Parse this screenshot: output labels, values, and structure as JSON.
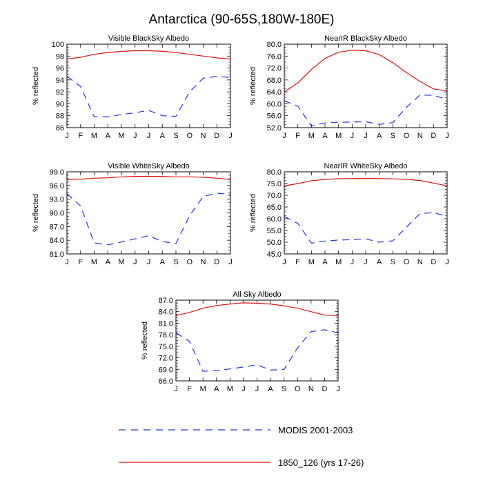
{
  "figure": {
    "title": "Antarctica (90-65S,180W-180E)"
  },
  "legend": {
    "entries": [
      {
        "label": "MODIS 2001-2003",
        "color": "#2233dd",
        "style": "dashed"
      },
      {
        "label": "1850_126 (yrs 17-26)",
        "color": "#dd1111",
        "style": "solid"
      }
    ]
  },
  "chart_data": [
    {
      "type": "line",
      "title": "Visible BlackSky Albedo",
      "ylabel": "% reflected",
      "categories": [
        "J",
        "F",
        "M",
        "A",
        "M",
        "J",
        "J",
        "A",
        "S",
        "O",
        "N",
        "D",
        "J"
      ],
      "ylim": [
        86,
        100
      ],
      "yticks": [
        "86",
        "88",
        "90",
        "92",
        "94",
        "96",
        "98",
        "100"
      ],
      "series": [
        {
          "name": "MODIS 2001-2003",
          "values": [
            94.6,
            92.9,
            87.8,
            87.8,
            88.2,
            88.5,
            88.9,
            88.0,
            87.9,
            92.0,
            94.3,
            94.6,
            94.4
          ]
        },
        {
          "name": "1850_126 (yrs 17-26)",
          "values": [
            97.5,
            97.8,
            98.3,
            98.6,
            98.8,
            98.9,
            98.9,
            98.8,
            98.6,
            98.3,
            98.0,
            97.7,
            97.5
          ]
        }
      ]
    },
    {
      "type": "line",
      "title": "NearIR BlackSky Albedo",
      "ylabel": "% reflected",
      "categories": [
        "J",
        "F",
        "M",
        "A",
        "M",
        "J",
        "J",
        "A",
        "S",
        "O",
        "N",
        "D",
        "J"
      ],
      "ylim": [
        52,
        80
      ],
      "yticks": [
        "52.0",
        "56.0",
        "60.0",
        "64.0",
        "68.0",
        "72.0",
        "76.0",
        "80.0"
      ],
      "series": [
        {
          "name": "MODIS 2001-2003",
          "values": [
            61.0,
            59.2,
            52.5,
            53.6,
            53.8,
            53.9,
            54.0,
            53.1,
            53.7,
            58.8,
            63.0,
            62.8,
            61.5
          ]
        },
        {
          "name": "1850_126 (yrs 17-26)",
          "values": [
            64.0,
            67.0,
            71.5,
            75.2,
            77.3,
            78.0,
            77.8,
            76.5,
            73.8,
            70.5,
            67.5,
            65.0,
            64.3
          ]
        }
      ]
    },
    {
      "type": "line",
      "title": "Visible WhiteSky Albedo",
      "ylabel": "% reflected",
      "categories": [
        "J",
        "F",
        "M",
        "A",
        "M",
        "J",
        "J",
        "A",
        "S",
        "O",
        "N",
        "D",
        "J"
      ],
      "ylim": [
        81,
        99
      ],
      "yticks": [
        "81.0",
        "84.0",
        "87.0",
        "90.0",
        "93.0",
        "96.0",
        "99.0"
      ],
      "series": [
        {
          "name": "MODIS 2001-2003",
          "values": [
            94.2,
            91.5,
            83.4,
            83.0,
            83.6,
            84.3,
            85.0,
            83.7,
            83.3,
            89.4,
            93.6,
            94.3,
            94.1
          ]
        },
        {
          "name": "1850_126 (yrs 17-26)",
          "values": [
            97.3,
            97.4,
            97.6,
            97.7,
            97.9,
            98.0,
            98.0,
            98.0,
            97.9,
            97.9,
            97.8,
            97.6,
            97.3
          ]
        }
      ]
    },
    {
      "type": "line",
      "title": "NearIR WhiteSky Albedo",
      "ylabel": "% reflected",
      "categories": [
        "J",
        "F",
        "M",
        "A",
        "M",
        "J",
        "J",
        "A",
        "S",
        "O",
        "N",
        "D",
        "J"
      ],
      "ylim": [
        45,
        80
      ],
      "yticks": [
        "45.0",
        "50.0",
        "55.0",
        "60.0",
        "65.0",
        "70.0",
        "75.0",
        "80.0"
      ],
      "series": [
        {
          "name": "MODIS 2001-2003",
          "values": [
            61.0,
            58.0,
            49.6,
            50.5,
            50.9,
            51.1,
            51.4,
            50.0,
            50.6,
            56.4,
            62.2,
            62.6,
            61.0
          ]
        },
        {
          "name": "1850_126 (yrs 17-26)",
          "values": [
            74.0,
            75.0,
            76.2,
            76.7,
            77.1,
            77.1,
            77.2,
            77.1,
            77.0,
            76.8,
            76.3,
            75.2,
            74.0
          ]
        }
      ]
    },
    {
      "type": "line",
      "title": "All Sky Albedo",
      "ylabel": "% reflected",
      "categories": [
        "J",
        "F",
        "M",
        "A",
        "M",
        "J",
        "J",
        "A",
        "S",
        "O",
        "N",
        "D",
        "J"
      ],
      "ylim": [
        66,
        87
      ],
      "yticks": [
        "66.0",
        "69.0",
        "72.0",
        "75.0",
        "78.0",
        "81.0",
        "84.0",
        "87.0"
      ],
      "series": [
        {
          "name": "MODIS 2001-2003",
          "values": [
            78.5,
            76.3,
            68.5,
            68.7,
            69.1,
            69.6,
            70.2,
            68.8,
            69.0,
            74.6,
            78.8,
            79.3,
            78.5
          ]
        },
        {
          "name": "1850_126 (yrs 17-26)",
          "values": [
            83.0,
            83.8,
            84.9,
            85.6,
            86.0,
            86.3,
            86.2,
            86.0,
            85.5,
            84.9,
            84.0,
            83.1,
            83.0
          ]
        }
      ]
    }
  ]
}
